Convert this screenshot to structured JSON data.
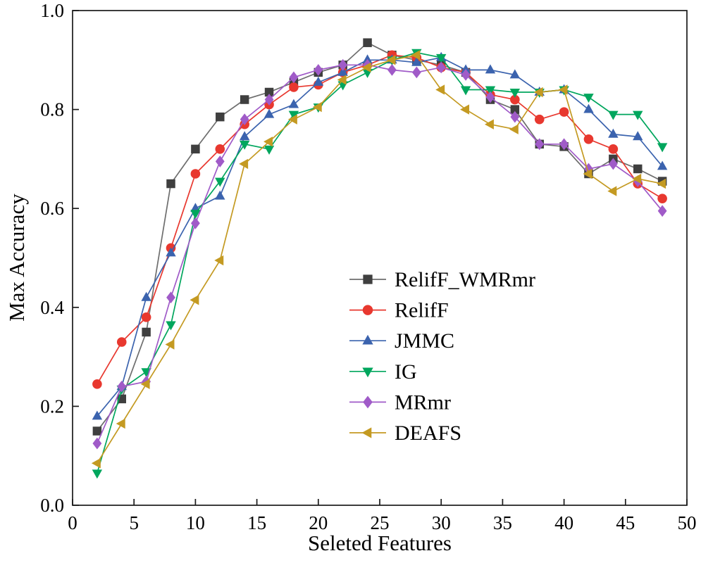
{
  "chart_data": {
    "type": "line",
    "title": "",
    "xlabel": "Seleted Features",
    "ylabel": "Max Accuracy",
    "xlim": [
      0,
      50
    ],
    "ylim": [
      0.0,
      1.0
    ],
    "xticks": [
      0,
      5,
      10,
      15,
      20,
      25,
      30,
      35,
      40,
      45,
      50
    ],
    "yticks": [
      0.0,
      0.2,
      0.4,
      0.6,
      0.8,
      1.0
    ],
    "grid": false,
    "legend_position": "inside lower-right-of-center",
    "x": [
      2,
      4,
      6,
      8,
      10,
      12,
      14,
      16,
      18,
      20,
      22,
      24,
      26,
      28,
      30,
      32,
      34,
      36,
      38,
      40,
      42,
      44,
      46,
      48
    ],
    "series": [
      {
        "name": "RelifF_WMRmr",
        "marker": "square",
        "color": "#3f3f3f",
        "line_color": "#6e6e6e",
        "values": [
          0.15,
          0.215,
          0.35,
          0.65,
          0.72,
          0.785,
          0.82,
          0.835,
          0.855,
          0.875,
          0.89,
          0.935,
          0.91,
          0.9,
          0.89,
          0.875,
          0.82,
          0.8,
          0.73,
          0.725,
          0.67,
          0.7,
          0.68,
          0.655
        ]
      },
      {
        "name": "RelifF",
        "marker": "circle",
        "color": "#e8382f",
        "line_color": "#e8382f",
        "values": [
          0.245,
          0.33,
          0.38,
          0.52,
          0.67,
          0.72,
          0.77,
          0.81,
          0.845,
          0.85,
          0.875,
          0.89,
          0.91,
          0.905,
          0.885,
          0.875,
          0.83,
          0.82,
          0.78,
          0.795,
          0.74,
          0.72,
          0.65,
          0.62
        ]
      },
      {
        "name": "JMMC",
        "marker": "triangle-up",
        "color": "#3b63ae",
        "line_color": "#3b63ae",
        "values": [
          0.18,
          0.24,
          0.42,
          0.51,
          0.6,
          0.625,
          0.745,
          0.79,
          0.81,
          0.855,
          0.875,
          0.9,
          0.9,
          0.895,
          0.905,
          0.88,
          0.88,
          0.87,
          0.835,
          0.84,
          0.8,
          0.75,
          0.745,
          0.685
        ]
      },
      {
        "name": "IG",
        "marker": "triangle-down",
        "color": "#00a65d",
        "line_color": "#00a65d",
        "values": [
          0.065,
          0.235,
          0.27,
          0.365,
          0.59,
          0.655,
          0.73,
          0.72,
          0.79,
          0.805,
          0.85,
          0.875,
          0.9,
          0.915,
          0.905,
          0.84,
          0.84,
          0.835,
          0.835,
          0.84,
          0.825,
          0.79,
          0.79,
          0.725
        ]
      },
      {
        "name": "MRmr",
        "marker": "diamond",
        "color": "#a05bc8",
        "line_color": "#a05bc8",
        "values": [
          0.125,
          0.24,
          0.25,
          0.42,
          0.57,
          0.695,
          0.78,
          0.82,
          0.865,
          0.88,
          0.89,
          0.89,
          0.88,
          0.875,
          0.885,
          0.87,
          0.825,
          0.785,
          0.73,
          0.73,
          0.68,
          0.69,
          0.655,
          0.595
        ]
      },
      {
        "name": "DEAFS",
        "marker": "triangle-left",
        "color": "#c49a22",
        "line_color": "#c49a22",
        "values": [
          0.085,
          0.165,
          0.245,
          0.325,
          0.415,
          0.495,
          0.69,
          0.735,
          0.78,
          0.805,
          0.86,
          0.885,
          0.9,
          0.91,
          0.84,
          0.8,
          0.77,
          0.76,
          0.835,
          0.84,
          0.67,
          0.635,
          0.66,
          0.65
        ]
      }
    ]
  }
}
